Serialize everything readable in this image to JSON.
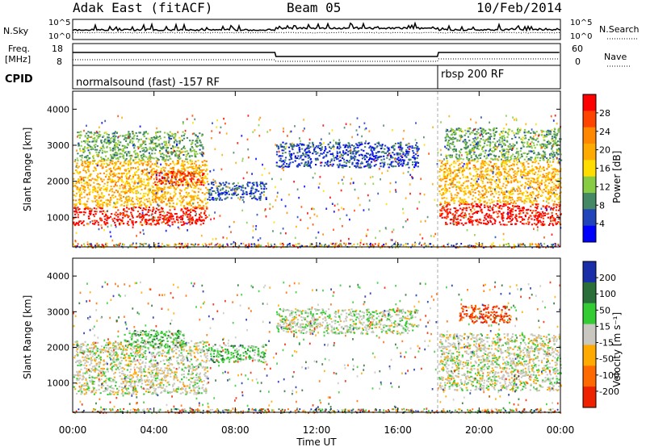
{
  "header": {
    "title": "Adak East (fitACF)",
    "beam": "Beam 05",
    "date": "10/Feb/2014"
  },
  "noise_panel": {
    "left_label": "N.Sky",
    "right_label": "N.Search",
    "left_ticks": [
      "10^5",
      "10^0"
    ],
    "right_ticks": [
      "10^5",
      "10^0"
    ]
  },
  "freq_panel": {
    "left_label_1": "Freq.",
    "left_label_2": "[MHz]",
    "right_label": "Nave",
    "left_ticks": [
      "18",
      "8"
    ],
    "right_ticks": [
      "60",
      "0"
    ]
  },
  "cpid_panel": {
    "label": "CPID",
    "segments": [
      {
        "text": "normalsound (fast) -157 RF",
        "start": "00:00"
      },
      {
        "text": "rbsp 200 RF",
        "start": "18:00"
      }
    ]
  },
  "power_panel": {
    "ylabel": "Slant Range [km]",
    "yticks": [
      "4000",
      "3000",
      "2000",
      "1000"
    ],
    "cbar_label": "Power [dB]",
    "cbar_ticks": [
      "28",
      "24",
      "20",
      "16",
      "12",
      "8",
      "4"
    ],
    "cbar_colors": [
      "#ff0000",
      "#ff4400",
      "#ff8800",
      "#ffaa00",
      "#ffdd00",
      "#88cc44",
      "#448866",
      "#2244bb",
      "#0000ff"
    ]
  },
  "velocity_panel": {
    "ylabel": "Slant Range [km]",
    "yticks": [
      "4000",
      "3000",
      "2000",
      "1000"
    ],
    "cbar_label": "Velocity [m s⁻¹]",
    "cbar_ticks": [
      "200",
      "100",
      "50",
      "15",
      "-15",
      "-50",
      "-100",
      "-200"
    ],
    "cbar_colors": [
      "#1a2ea8",
      "#2a6f3a",
      "#33cc33",
      "#c8c8c0",
      "#ffaa00",
      "#ff6a00",
      "#ee2200"
    ]
  },
  "xaxis": {
    "label": "Time UT",
    "ticks": [
      "00:00",
      "04:00",
      "08:00",
      "12:00",
      "16:00",
      "20:00",
      "00:00"
    ]
  },
  "chart_data": {
    "type": "heatmap",
    "title": "Adak East (fitACF)",
    "subtitle": "Beam 05",
    "date": "10/Feb/2014",
    "xlabel": "Time UT",
    "ylabel": "Slant Range [km]",
    "xlim_hours": [
      0,
      24
    ],
    "ylim_km": [
      180,
      4500
    ],
    "panels": [
      {
        "name": "Power",
        "unit": "dB",
        "scale": [
          0,
          30
        ],
        "regions": [
          {
            "t0": 0.0,
            "t1": 6.6,
            "r0": 800,
            "r1": 1300,
            "level": 28
          },
          {
            "t0": 0.0,
            "t1": 6.6,
            "r0": 1300,
            "r1": 2600,
            "level": 18
          },
          {
            "t0": 4.0,
            "t1": 6.4,
            "r0": 1900,
            "r1": 2300,
            "level": 26
          },
          {
            "t0": 0.2,
            "t1": 6.4,
            "r0": 2600,
            "r1": 3400,
            "level": 10
          },
          {
            "t0": 6.6,
            "t1": 9.5,
            "r0": 1500,
            "r1": 2000,
            "level": 6
          },
          {
            "t0": 10.0,
            "t1": 17.0,
            "r0": 2400,
            "r1": 3100,
            "level": 5
          },
          {
            "t0": 18.0,
            "t1": 24.0,
            "r0": 800,
            "r1": 1400,
            "level": 28
          },
          {
            "t0": 18.0,
            "t1": 24.0,
            "r0": 1400,
            "r1": 2600,
            "level": 18
          },
          {
            "t0": 18.3,
            "t1": 24.0,
            "r0": 2600,
            "r1": 3500,
            "level": 10
          }
        ]
      },
      {
        "name": "Velocity",
        "unit": "m s-1",
        "scale": [
          -200,
          200
        ],
        "regions": [
          {
            "t0": 0.0,
            "t1": 6.6,
            "r0": 700,
            "r1": 2200,
            "level": 0
          },
          {
            "t0": 2.5,
            "t1": 5.5,
            "r0": 2000,
            "r1": 2500,
            "level": 60
          },
          {
            "t0": 6.6,
            "t1": 9.5,
            "r0": 1600,
            "r1": 2100,
            "level": 50
          },
          {
            "t0": 10.0,
            "t1": 17.0,
            "r0": 2400,
            "r1": 3100,
            "level": 10
          },
          {
            "t0": 18.0,
            "t1": 24.0,
            "r0": 800,
            "r1": 2400,
            "level": 0
          },
          {
            "t0": 19.0,
            "t1": 21.5,
            "r0": 2700,
            "r1": 3200,
            "level": -150
          }
        ]
      }
    ],
    "cpid_change_hour": 18.0,
    "legend": "right"
  }
}
